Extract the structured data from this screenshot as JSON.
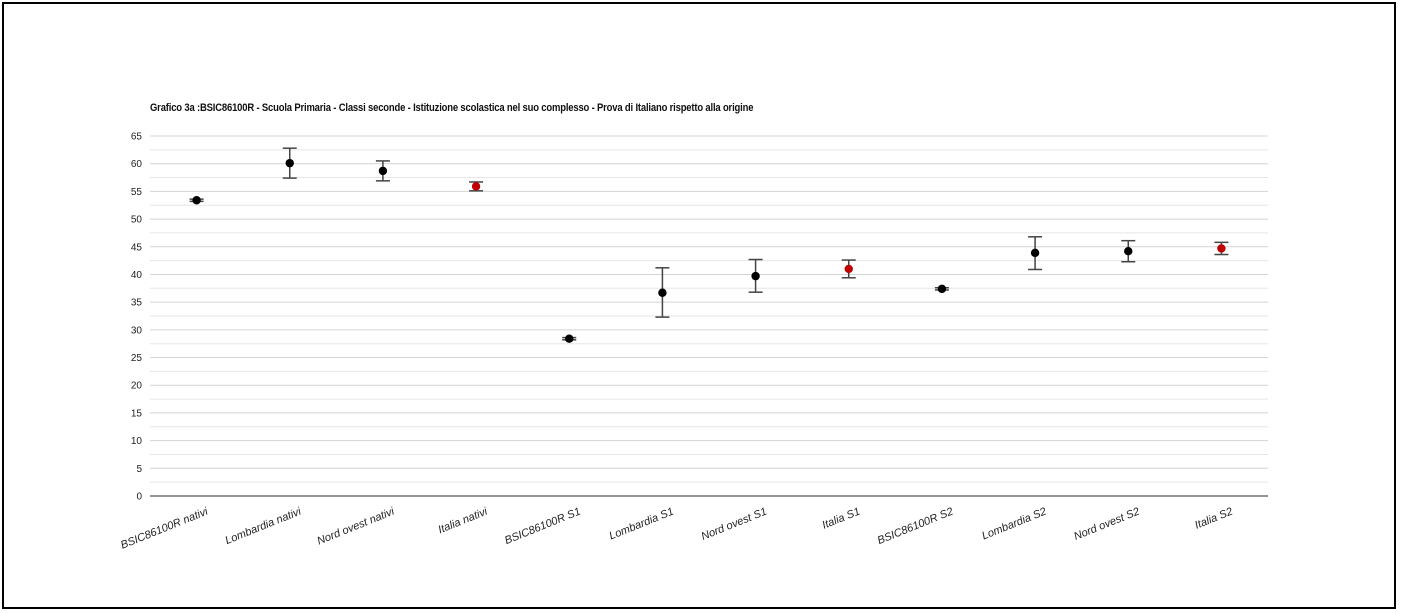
{
  "chart_data": {
    "type": "scatter",
    "title": "Grafico 3a :BSIC86100R - Scuola Primaria - Classi seconde - Istituzione scolastica nel suo complesso - Prova di Italiano rispetto alla  origine",
    "ylim": [
      0,
      65
    ],
    "yticks": [
      0,
      5,
      10,
      15,
      20,
      25,
      30,
      35,
      40,
      45,
      50,
      55,
      60,
      65
    ],
    "grid": true,
    "categories": [
      "BSIC86100R nativi",
      "Lombardia nativi",
      "Nord ovest nativi",
      "Italia nativi",
      "BSIC86100R S1",
      "Lombardia S1",
      "Nord ovest S1",
      "Italia S1",
      "BSIC86100R S2",
      "Lombardia S2",
      "Nord ovest S2",
      "Italia S2"
    ],
    "values": [
      53.4,
      60.1,
      58.7,
      55.9,
      28.4,
      36.7,
      39.7,
      41.0,
      37.4,
      43.9,
      44.2,
      44.7
    ],
    "error_low": [
      53.2,
      57.4,
      56.9,
      55.1,
      28.2,
      32.3,
      36.8,
      39.4,
      37.2,
      40.9,
      42.3,
      43.6
    ],
    "error_high": [
      53.6,
      62.8,
      60.5,
      56.7,
      28.6,
      41.2,
      42.7,
      42.6,
      37.6,
      46.8,
      46.1,
      45.8
    ],
    "point_colors": [
      "#000000",
      "#000000",
      "#000000",
      "#c00000",
      "#000000",
      "#000000",
      "#000000",
      "#c00000",
      "#000000",
      "#000000",
      "#000000",
      "#c00000"
    ]
  }
}
